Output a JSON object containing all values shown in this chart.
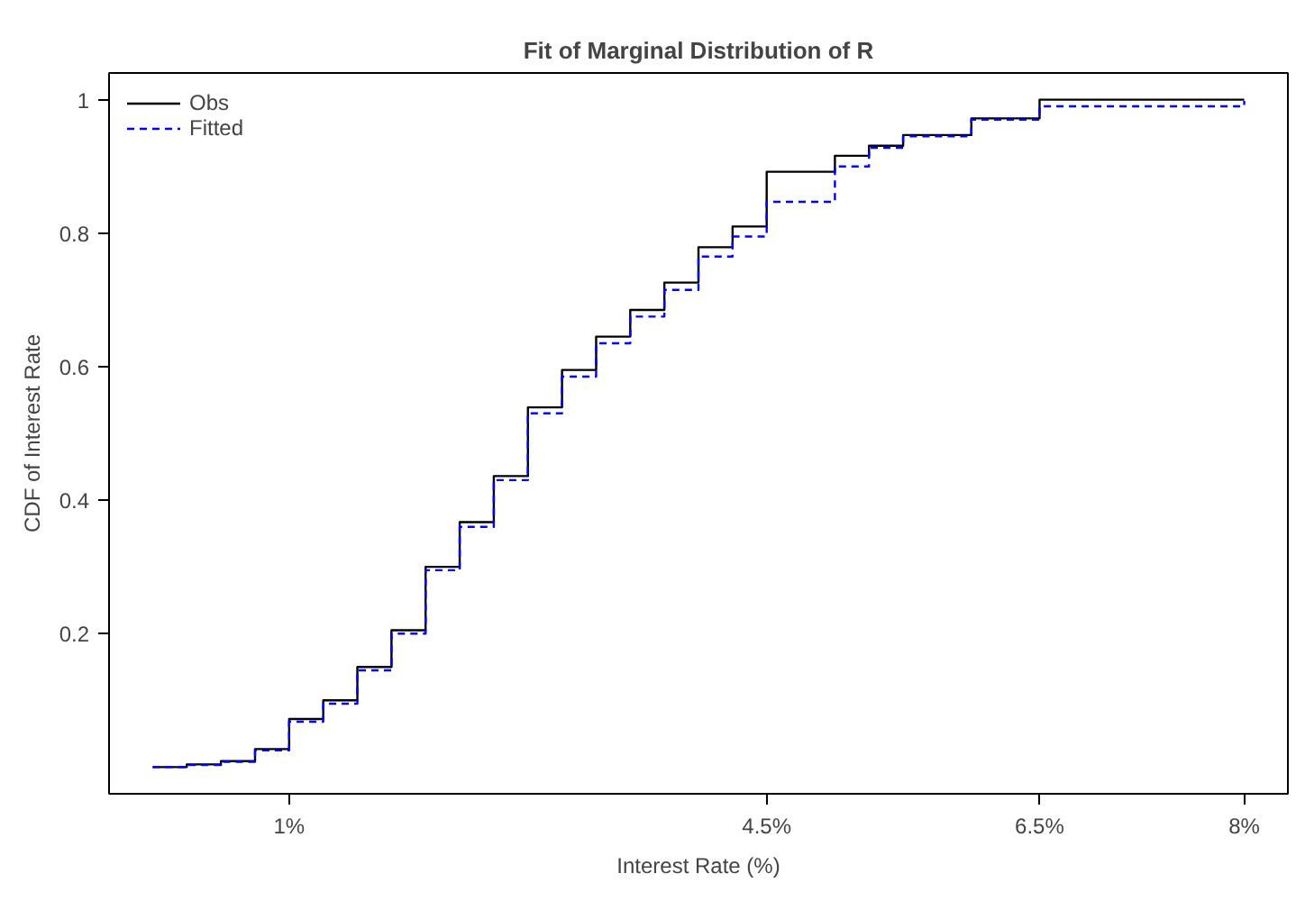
{
  "chart_data": {
    "type": "step",
    "title": "Fit of Marginal Distribution of R",
    "xlabel": "Interest Rate (%)",
    "ylabel": "CDF of Interest Rate",
    "x": [
      0,
      0.25,
      0.5,
      0.75,
      1,
      1.25,
      1.5,
      1.75,
      2,
      2.25,
      2.5,
      2.75,
      3,
      3.25,
      3.5,
      3.75,
      4,
      4.25,
      4.5,
      5,
      5.25,
      5.5,
      6,
      6.5,
      8
    ],
    "series": [
      {
        "name": "Obs",
        "color": "#000000",
        "line_style": "solid",
        "values": [
          0.0,
          0.004,
          0.009,
          0.027,
          0.072,
          0.1,
          0.15,
          0.205,
          0.3,
          0.367,
          0.436,
          0.539,
          0.595,
          0.645,
          0.685,
          0.726,
          0.779,
          0.81,
          0.892,
          0.916,
          0.931,
          0.947,
          0.972,
          1.0,
          1.0
        ]
      },
      {
        "name": "Fitted",
        "color": "#0000ff",
        "line_style": "dashed",
        "values": [
          0.0,
          0.003,
          0.008,
          0.025,
          0.068,
          0.095,
          0.145,
          0.2,
          0.295,
          0.36,
          0.43,
          0.53,
          0.585,
          0.635,
          0.675,
          0.715,
          0.765,
          0.795,
          0.847,
          0.9,
          0.928,
          0.945,
          0.97,
          0.99,
          0.998
        ]
      }
    ],
    "xlim": [
      -0.32,
      8.32
    ],
    "ylim": [
      -0.04,
      1.04
    ],
    "xticks": [
      {
        "value": 1,
        "label": "1%"
      },
      {
        "value": 4.5,
        "label": "4.5%"
      },
      {
        "value": 6.5,
        "label": "6.5%"
      },
      {
        "value": 8,
        "label": "8%"
      }
    ],
    "yticks": [
      0.2,
      0.4,
      0.6,
      0.8,
      1
    ],
    "legend": "top left",
    "grid": false
  }
}
